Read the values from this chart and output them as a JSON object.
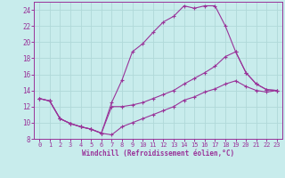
{
  "xlabel": "Windchill (Refroidissement éolien,°C)",
  "ylabel": "",
  "xlim": [
    -0.5,
    23.5
  ],
  "ylim": [
    8,
    25
  ],
  "xticks": [
    0,
    1,
    2,
    3,
    4,
    5,
    6,
    7,
    8,
    9,
    10,
    11,
    12,
    13,
    14,
    15,
    16,
    17,
    18,
    19,
    20,
    21,
    22,
    23
  ],
  "yticks": [
    8,
    10,
    12,
    14,
    16,
    18,
    20,
    22,
    24
  ],
  "bg_color": "#c8ecec",
  "line_color": "#993399",
  "grid_color": "#b0d8d8",
  "lines": [
    {
      "x": [
        0,
        1,
        2,
        3,
        4,
        5,
        6,
        7,
        8,
        9,
        10,
        11,
        12,
        13,
        14,
        15,
        16,
        17,
        18,
        19,
        20,
        21,
        22,
        23
      ],
      "y": [
        13,
        12.7,
        10.5,
        9.9,
        9.5,
        9.2,
        8.7,
        12.5,
        15.3,
        18.8,
        19.8,
        21.2,
        22.5,
        23.2,
        24.5,
        24.2,
        24.5,
        24.5,
        22.0,
        18.8,
        16.2,
        14.8,
        14.1,
        14.0
      ]
    },
    {
      "x": [
        0,
        1,
        2,
        3,
        4,
        5,
        6,
        7,
        8,
        9,
        10,
        11,
        12,
        13,
        14,
        15,
        16,
        17,
        18,
        19,
        20,
        21,
        22,
        23
      ],
      "y": [
        13,
        12.7,
        10.5,
        9.9,
        9.5,
        9.2,
        8.7,
        12.0,
        12.0,
        12.2,
        12.5,
        13.0,
        13.5,
        14.0,
        14.8,
        15.5,
        16.2,
        17.0,
        18.2,
        18.8,
        16.2,
        14.8,
        14.1,
        14.0
      ]
    },
    {
      "x": [
        0,
        1,
        2,
        3,
        4,
        5,
        6,
        7,
        8,
        9,
        10,
        11,
        12,
        13,
        14,
        15,
        16,
        17,
        18,
        19,
        20,
        21,
        22,
        23
      ],
      "y": [
        13,
        12.7,
        10.5,
        9.9,
        9.5,
        9.2,
        8.7,
        8.5,
        9.5,
        10.0,
        10.5,
        11.0,
        11.5,
        12.0,
        12.8,
        13.2,
        13.8,
        14.2,
        14.8,
        15.2,
        14.5,
        14.0,
        13.8,
        14.0
      ]
    }
  ]
}
